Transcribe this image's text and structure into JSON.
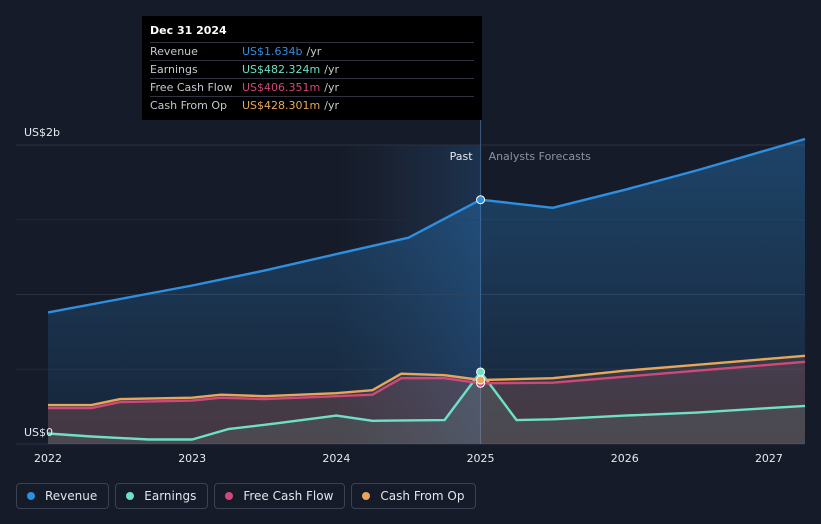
{
  "chart_data": {
    "type": "area",
    "y_axis_label_top": "US$2b",
    "y_axis_label_bottom": "US$0",
    "ylim": [
      0,
      2.0
    ],
    "xlim": [
      2022,
      2027.25
    ],
    "x_ticks": [
      {
        "value": 2022,
        "label": "2022"
      },
      {
        "value": 2023,
        "label": "2023"
      },
      {
        "value": 2024,
        "label": "2024"
      },
      {
        "value": 2025,
        "label": "2025"
      },
      {
        "value": 2026,
        "label": "2026"
      },
      {
        "value": 2027,
        "label": "2027"
      }
    ],
    "divider_x": 2025,
    "past_label": "Past",
    "forecast_label": "Analysts Forecasts",
    "series": [
      {
        "name": "Revenue",
        "color": "#2e8fe0",
        "points": [
          [
            2022,
            0.88
          ],
          [
            2022.5,
            0.97
          ],
          [
            2023,
            1.06
          ],
          [
            2023.5,
            1.16
          ],
          [
            2024,
            1.27
          ],
          [
            2024.5,
            1.38
          ],
          [
            2025,
            1.634
          ],
          [
            2025.5,
            1.58
          ],
          [
            2026,
            1.7
          ],
          [
            2026.5,
            1.83
          ],
          [
            2027,
            1.97
          ],
          [
            2027.25,
            2.04
          ]
        ]
      },
      {
        "name": "Earnings",
        "color": "#6fe0c8",
        "points": [
          [
            2022,
            0.07
          ],
          [
            2022.3,
            0.05
          ],
          [
            2022.7,
            0.03
          ],
          [
            2023,
            0.03
          ],
          [
            2023.25,
            0.1
          ],
          [
            2023.6,
            0.14
          ],
          [
            2024,
            0.19
          ],
          [
            2024.25,
            0.155
          ],
          [
            2024.75,
            0.16
          ],
          [
            2025,
            0.482
          ],
          [
            2025.25,
            0.16
          ],
          [
            2025.5,
            0.165
          ],
          [
            2026,
            0.19
          ],
          [
            2026.5,
            0.21
          ],
          [
            2027,
            0.24
          ],
          [
            2027.25,
            0.255
          ]
        ]
      },
      {
        "name": "Free Cash Flow",
        "color": "#d0487a",
        "points": [
          [
            2022,
            0.24
          ],
          [
            2022.3,
            0.24
          ],
          [
            2022.5,
            0.28
          ],
          [
            2023,
            0.29
          ],
          [
            2023.2,
            0.31
          ],
          [
            2023.5,
            0.3
          ],
          [
            2024,
            0.32
          ],
          [
            2024.25,
            0.33
          ],
          [
            2024.45,
            0.44
          ],
          [
            2024.75,
            0.44
          ],
          [
            2025,
            0.406
          ],
          [
            2025.5,
            0.41
          ],
          [
            2026,
            0.45
          ],
          [
            2026.5,
            0.49
          ],
          [
            2027,
            0.53
          ],
          [
            2027.25,
            0.55
          ]
        ]
      },
      {
        "name": "Cash From Op",
        "color": "#e8a65a",
        "points": [
          [
            2022,
            0.26
          ],
          [
            2022.3,
            0.26
          ],
          [
            2022.5,
            0.3
          ],
          [
            2023,
            0.31
          ],
          [
            2023.2,
            0.33
          ],
          [
            2023.5,
            0.32
          ],
          [
            2024,
            0.34
          ],
          [
            2024.25,
            0.36
          ],
          [
            2024.45,
            0.47
          ],
          [
            2024.75,
            0.46
          ],
          [
            2025,
            0.428
          ],
          [
            2025.5,
            0.44
          ],
          [
            2026,
            0.49
          ],
          [
            2026.5,
            0.53
          ],
          [
            2027,
            0.57
          ],
          [
            2027.25,
            0.59
          ]
        ]
      }
    ],
    "highlight_x": 2025
  },
  "tooltip": {
    "date": "Dec 31 2024",
    "rows": [
      {
        "label": "Revenue",
        "value": "US$1.634b",
        "unit": "/yr",
        "color": "#2e8fe0"
      },
      {
        "label": "Earnings",
        "value": "US$482.324m",
        "unit": "/yr",
        "color": "#6fe0c8"
      },
      {
        "label": "Free Cash Flow",
        "value": "US$406.351m",
        "unit": "/yr",
        "color": "#d0487a"
      },
      {
        "label": "Cash From Op",
        "value": "US$428.301m",
        "unit": "/yr",
        "color": "#e8a65a"
      }
    ]
  },
  "legend": [
    {
      "label": "Revenue",
      "color": "#2e8fe0"
    },
    {
      "label": "Earnings",
      "color": "#6fe0c8"
    },
    {
      "label": "Free Cash Flow",
      "color": "#d0487a"
    },
    {
      "label": "Cash From Op",
      "color": "#e8a65a"
    }
  ]
}
